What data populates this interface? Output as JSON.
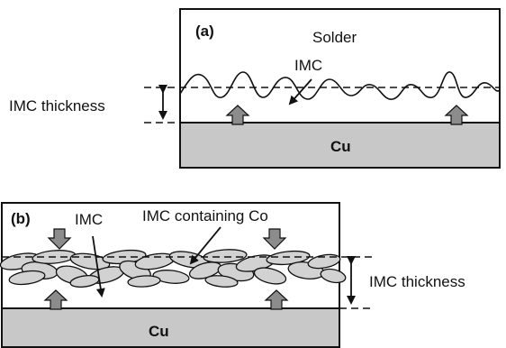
{
  "panel_a": {
    "tag": "(a)",
    "solder_label": "Solder",
    "imc_label": "IMC",
    "thickness_label": "IMC thickness",
    "substrate_label": "Cu"
  },
  "panel_b": {
    "tag": "(b)",
    "imc_label": "IMC",
    "imc_co_label": "IMC containing Co",
    "thickness_label": "IMC thickness",
    "substrate_label": "Cu"
  },
  "colors": {
    "substrate_fill": "#c8c8c8",
    "arrow_fill": "#8c8c8c",
    "grain_fill": "#d2d2d2",
    "outline": "#111111"
  }
}
